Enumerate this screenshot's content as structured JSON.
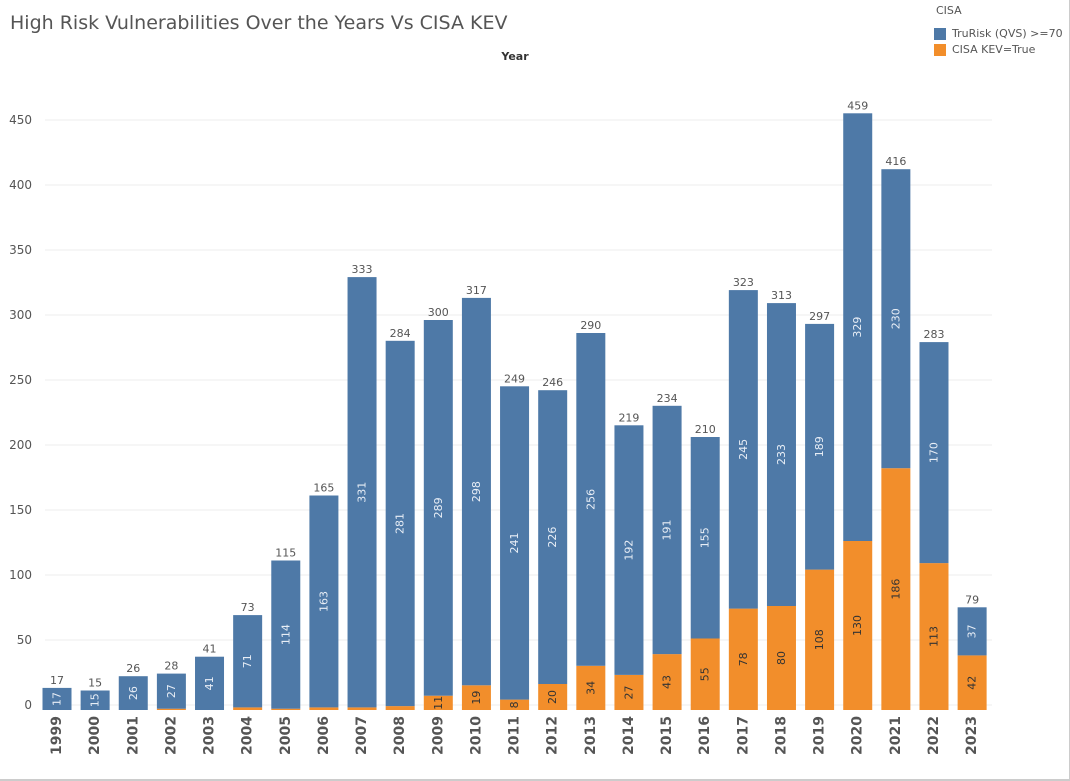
{
  "title": "High Risk Vulnerabilities Over the Years Vs CISA KEV",
  "legend": {
    "title": "CISA",
    "items": [
      {
        "label": "TruRisk (QVS) >=70",
        "color": "#4e79a7"
      },
      {
        "label": "CISA KEV=True",
        "color": "#f28e2b"
      }
    ]
  },
  "chart_data": {
    "type": "bar",
    "stacked": true,
    "title": "High Risk Vulnerabilities Over the Years Vs CISA KEV",
    "xlabel": "Year",
    "ylabel": "",
    "ylim": [
      0,
      480
    ],
    "yticks": [
      0,
      50,
      100,
      150,
      200,
      250,
      300,
      350,
      400,
      450
    ],
    "grid": true,
    "legend_position": "top-right",
    "categories": [
      "1999",
      "2000",
      "2001",
      "2002",
      "2003",
      "2004",
      "2005",
      "2006",
      "2007",
      "2008",
      "2009",
      "2010",
      "2011",
      "2012",
      "2013",
      "2014",
      "2015",
      "2016",
      "2017",
      "2018",
      "2019",
      "2020",
      "2021",
      "2022",
      "2023"
    ],
    "series": [
      {
        "name": "CISA KEV=True",
        "color": "#f28e2b",
        "values": [
          0,
          0,
          0,
          1,
          0,
          2,
          1,
          2,
          2,
          3,
          11,
          19,
          8,
          20,
          34,
          27,
          43,
          55,
          78,
          80,
          108,
          130,
          186,
          113,
          42
        ]
      },
      {
        "name": "TruRisk (QVS) >=70",
        "color": "#4e79a7",
        "values": [
          17,
          15,
          26,
          27,
          41,
          71,
          114,
          163,
          331,
          281,
          289,
          298,
          241,
          226,
          256,
          192,
          191,
          155,
          245,
          233,
          189,
          329,
          230,
          170,
          37
        ]
      }
    ],
    "totals": [
      17,
      15,
      26,
      28,
      41,
      73,
      115,
      165,
      333,
      284,
      300,
      317,
      249,
      246,
      290,
      219,
      234,
      210,
      323,
      313,
      297,
      459,
      416,
      283,
      79
    ]
  }
}
